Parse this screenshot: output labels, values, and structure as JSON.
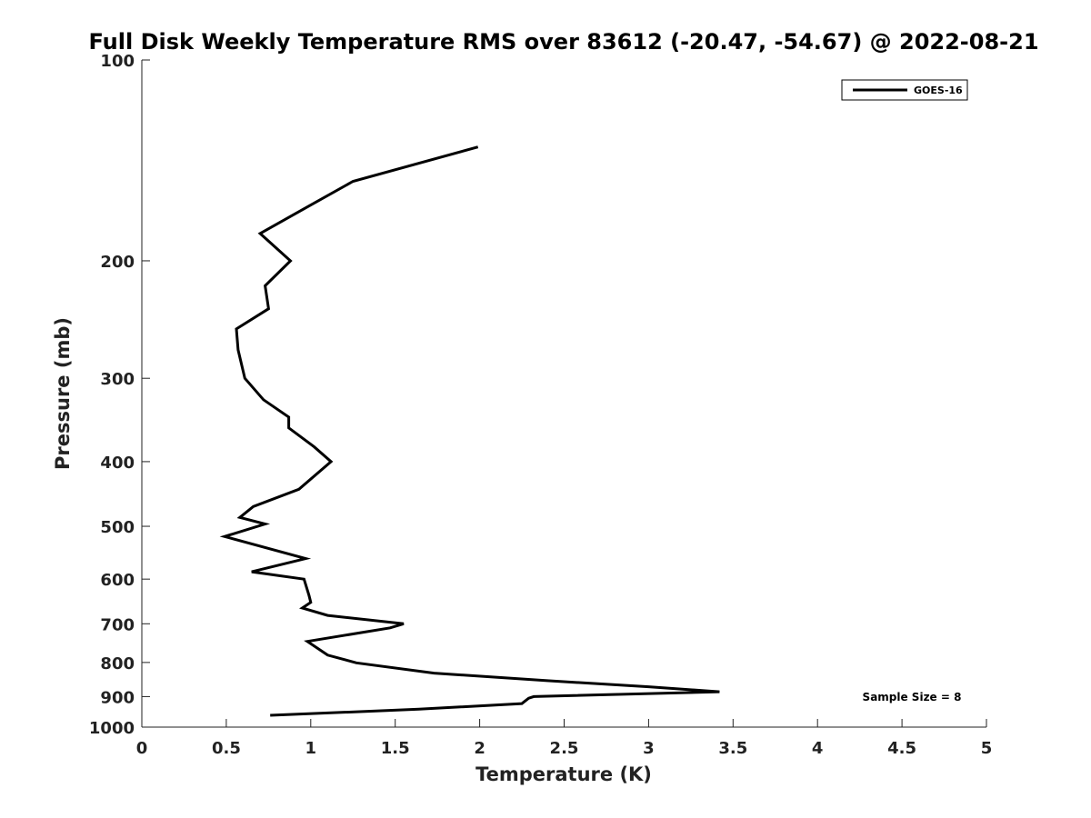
{
  "chart_data": {
    "type": "line",
    "title": "Full Disk Weekly Temperature RMS over 83612 (-20.47, -54.67) @ 2022-08-21",
    "xlabel": "Temperature (K)",
    "ylabel": "Pressure (mb)",
    "xlim": [
      0,
      5
    ],
    "ylim": [
      1000,
      100
    ],
    "yscale": "log",
    "y_reversed": true,
    "grid": false,
    "legend_position": "top-right",
    "x_ticks": [
      "0",
      "0.5",
      "1",
      "1.5",
      "2",
      "2.5",
      "3",
      "3.5",
      "4",
      "4.5",
      "5"
    ],
    "x_tick_values": [
      0,
      0.5,
      1,
      1.5,
      2,
      2.5,
      3,
      3.5,
      4,
      4.5,
      5
    ],
    "y_ticks": [
      "100",
      "200",
      "300",
      "400",
      "500",
      "600",
      "700",
      "800",
      "900",
      "1000"
    ],
    "y_tick_values": [
      100,
      200,
      300,
      400,
      500,
      600,
      700,
      800,
      900,
      1000
    ],
    "annotation": "Sample Size = 8",
    "series": [
      {
        "name": "GOES-16",
        "color": "#000000",
        "points": [
          [
            1.99,
            135
          ],
          [
            1.25,
            152
          ],
          [
            1.0,
            165
          ],
          [
            0.7,
            182
          ],
          [
            0.88,
            200
          ],
          [
            0.73,
            218
          ],
          [
            0.75,
            236
          ],
          [
            0.56,
            253
          ],
          [
            0.57,
            272
          ],
          [
            0.61,
            300
          ],
          [
            0.72,
            323
          ],
          [
            0.87,
            343
          ],
          [
            0.87,
            356
          ],
          [
            1.02,
            380
          ],
          [
            1.12,
            400
          ],
          [
            0.93,
            440
          ],
          [
            0.66,
            467
          ],
          [
            0.58,
            485
          ],
          [
            0.73,
            496
          ],
          [
            0.49,
            518
          ],
          [
            0.97,
            559
          ],
          [
            0.65,
            585
          ],
          [
            0.96,
            600
          ],
          [
            0.99,
            635
          ],
          [
            1.0,
            650
          ],
          [
            0.95,
            663
          ],
          [
            1.1,
            680
          ],
          [
            1.55,
            700
          ],
          [
            1.47,
            710
          ],
          [
            0.98,
            744
          ],
          [
            1.1,
            780
          ],
          [
            1.27,
            801
          ],
          [
            1.73,
            830
          ],
          [
            2.4,
            852
          ],
          [
            3.0,
            870
          ],
          [
            3.42,
            885
          ],
          [
            2.32,
            900
          ],
          [
            2.29,
            905
          ],
          [
            2.25,
            922
          ],
          [
            1.64,
            940
          ],
          [
            0.76,
            960
          ]
        ]
      }
    ]
  }
}
